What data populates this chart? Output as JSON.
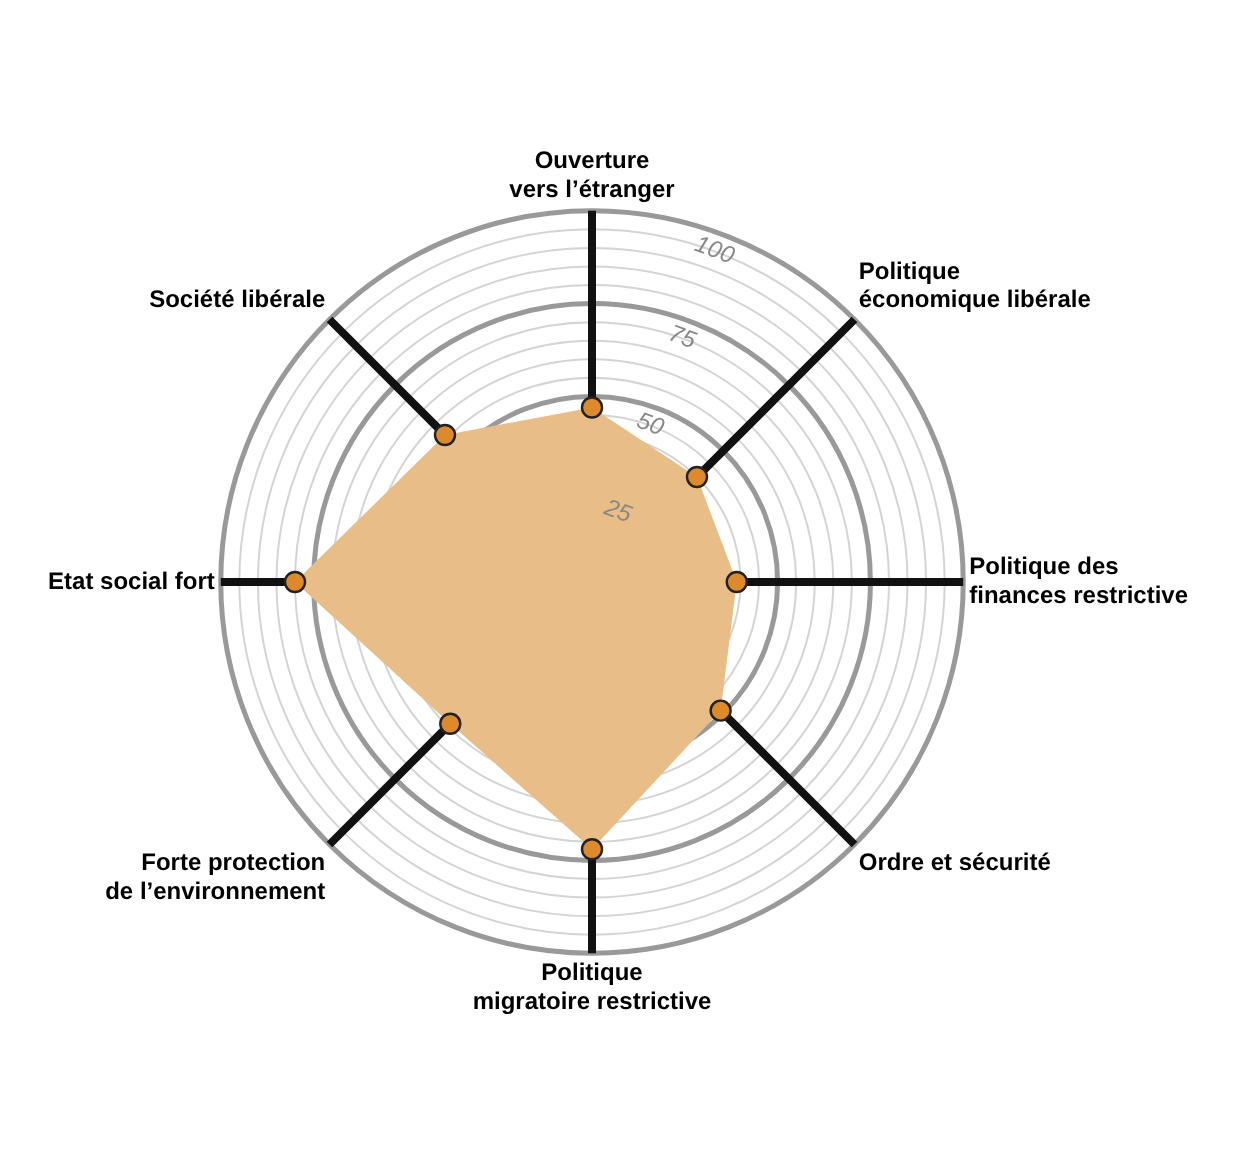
{
  "chart_data": {
    "type": "radar",
    "categories": [
      "Ouverture\nvers l’étranger",
      "Politique\néconomique libérale",
      "Politique des\nfinances restrictive",
      "Ordre et sécurité",
      "Politique\nmigratoire restrictive",
      "Forte protection\nde l’environnement",
      "Etat social fort",
      "Société libérale"
    ],
    "series": [
      {
        "color": "#e8bd88",
        "values": [
          47,
          40,
          39,
          49,
          72,
          54,
          80,
          56
        ]
      }
    ],
    "ylim": [
      0,
      100
    ],
    "yticks": [
      25,
      50,
      75,
      100
    ],
    "grid": true,
    "marker": "circle",
    "legend": false
  }
}
